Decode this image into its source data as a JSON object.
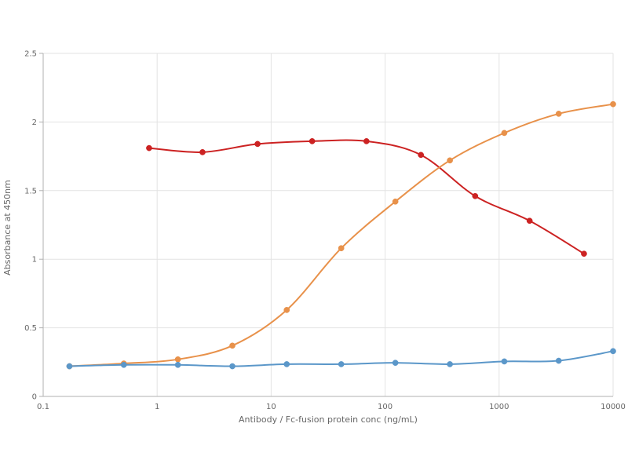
{
  "chart_data": {
    "type": "line",
    "xlabel": "Antibody / Fc-fusion protein conc  (ng/mL)",
    "ylabel": "Absorbance at 450nm",
    "xscale": "log",
    "xlim": [
      0.1,
      10000
    ],
    "ylim": [
      0,
      2.5
    ],
    "x_ticks": [
      0.1,
      1,
      10,
      100,
      1000,
      10000
    ],
    "x_tick_labels": [
      "0.1",
      "1",
      "10",
      "100",
      "1000",
      "10000"
    ],
    "y_ticks": [
      0,
      0.5,
      1,
      1.5,
      2,
      2.5
    ],
    "y_tick_labels": [
      "0",
      "0.5",
      "1",
      "1.5",
      "2",
      "2.5"
    ],
    "grid": true,
    "legend": "none",
    "series": [
      {
        "color": "#cc2222",
        "x": [
          0.85,
          2.5,
          7.6,
          22.9,
          68.6,
          206,
          617,
          1852,
          5556
        ],
        "y": [
          1.81,
          1.78,
          1.84,
          1.86,
          1.86,
          1.76,
          1.46,
          1.28,
          1.04
        ]
      },
      {
        "color": "#e8914a",
        "x": [
          0.17,
          0.51,
          1.52,
          4.57,
          13.7,
          41.2,
          123,
          370,
          1111,
          3333,
          10000
        ],
        "y": [
          0.22,
          0.24,
          0.27,
          0.37,
          0.63,
          1.08,
          1.42,
          1.72,
          1.92,
          2.06,
          2.13
        ]
      },
      {
        "color": "#5b97c9",
        "x": [
          0.17,
          0.51,
          1.52,
          4.57,
          13.7,
          41.2,
          123,
          370,
          1111,
          3333,
          10000
        ],
        "y": [
          0.22,
          0.23,
          0.23,
          0.22,
          0.235,
          0.235,
          0.245,
          0.235,
          0.255,
          0.26,
          0.33
        ]
      }
    ]
  }
}
